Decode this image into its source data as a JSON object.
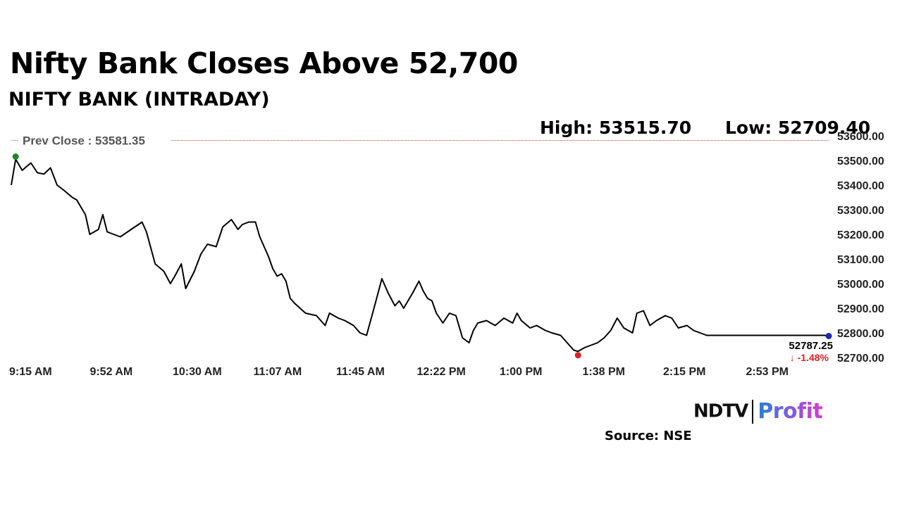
{
  "headline": "Nifty Bank Closes Above 52,700",
  "subheadline": "NIFTY BANK (INTRADAY)",
  "high_label": "High: 53515.70",
  "low_label": "Low: 52709.40",
  "source": "Source: NSE",
  "logo": {
    "left": "NDTV",
    "right": "Profit",
    "colors": {
      "ndtv": "#111111",
      "profit_start": "#2a7de1",
      "profit_end": "#d63ad8"
    }
  },
  "colors": {
    "line": "#000000",
    "prev_close_line": "#d13a3a",
    "high_marker": "#1a8a1a",
    "low_marker": "#e02020",
    "last_marker": "#1a2ab8",
    "change": "#e02020",
    "axis_text": "#222222"
  },
  "chart_data": {
    "type": "line",
    "title": "NIFTY BANK (INTRADAY)",
    "prev_close_label": "Prev Close : 53581.35",
    "prev_close": 53581.35,
    "high": 53515.7,
    "low": 52709.4,
    "last_value_label": "52787.25",
    "change_label": "↓ -1.48%",
    "ylim": [
      52690,
      53600
    ],
    "y_ticks": [
      53600,
      53500,
      53400,
      53300,
      53200,
      53100,
      53000,
      52900,
      52800,
      52700
    ],
    "y_tick_labels": [
      "53600.00",
      "53500.00",
      "53400.00",
      "53300.00",
      "53200.00",
      "53100.00",
      "53000.00",
      "52900.00",
      "52800.00",
      "52700.00"
    ],
    "x_tick_labels": [
      "9:15 AM",
      "9:52 AM",
      "10:30 AM",
      "11:07 AM",
      "11:45 AM",
      "12:22 PM",
      "1:00 PM",
      "1:38 PM",
      "2:15 PM",
      "2:53 PM"
    ],
    "x_tick_positions": [
      0,
      37,
      75,
      112,
      150,
      187,
      225,
      263,
      300,
      338
    ],
    "x_range": [
      0,
      375
    ],
    "grid": false,
    "series": [
      {
        "x": [
          0,
          2,
          5,
          9,
          12,
          15,
          18,
          21,
          24,
          28,
          30,
          34,
          36,
          40,
          42,
          44,
          50,
          55,
          60,
          62,
          66,
          70,
          73,
          75,
          78,
          80,
          84,
          87,
          90,
          94,
          97,
          101,
          104,
          106,
          109,
          112,
          114,
          116,
          118,
          120,
          122,
          124,
          126,
          128,
          130,
          135,
          140,
          144,
          146,
          150,
          153,
          157,
          160,
          163,
          167,
          170,
          173,
          176,
          178,
          180,
          184,
          187,
          189,
          191,
          193,
          195,
          198,
          201,
          204,
          207,
          210,
          212,
          214,
          218,
          222,
          226,
          230,
          232,
          234,
          238,
          241,
          245,
          248,
          252,
          255,
          258,
          260,
          263,
          266,
          269,
          272,
          275,
          278,
          281,
          285,
          287,
          290,
          293,
          296,
          298,
          300,
          303,
          306,
          310,
          313,
          316,
          319,
          322,
          325,
          328,
          332,
          335,
          338,
          341,
          345,
          348,
          352,
          355,
          358,
          362,
          366,
          370,
          373,
          375
        ],
        "y": [
          53400,
          53505,
          53460,
          53490,
          53450,
          53445,
          53470,
          53400,
          53380,
          53350,
          53340,
          53280,
          53200,
          53220,
          53280,
          53210,
          53190,
          53220,
          53250,
          53210,
          53080,
          53050,
          53000,
          53030,
          53080,
          52980,
          53050,
          53120,
          53160,
          53150,
          53230,
          53260,
          53220,
          53240,
          53250,
          53250,
          53190,
          53150,
          53110,
          53060,
          53030,
          53040,
          53010,
          52940,
          52920,
          52880,
          52870,
          52830,
          52880,
          52860,
          52850,
          52830,
          52800,
          52790,
          52920,
          53020,
          52960,
          52910,
          52930,
          52900,
          52960,
          53010,
          52970,
          52940,
          52930,
          52880,
          52840,
          52880,
          52870,
          52780,
          52760,
          52810,
          52840,
          52850,
          52830,
          52860,
          52840,
          52880,
          52850,
          52820,
          52830,
          52810,
          52800,
          52790,
          52760,
          52730,
          52725,
          52740,
          52750,
          52760,
          52780,
          52810,
          52860,
          52820,
          52800,
          52880,
          52890,
          52830,
          52850,
          52860,
          52870,
          52860,
          52820,
          52830,
          52810,
          52800,
          52790,
          52790,
          52790,
          52790,
          52790,
          52790,
          52790,
          52790,
          52790,
          52790,
          52790,
          52790,
          52790,
          52790,
          52790,
          52790,
          52790,
          52787.25
        ]
      }
    ]
  }
}
